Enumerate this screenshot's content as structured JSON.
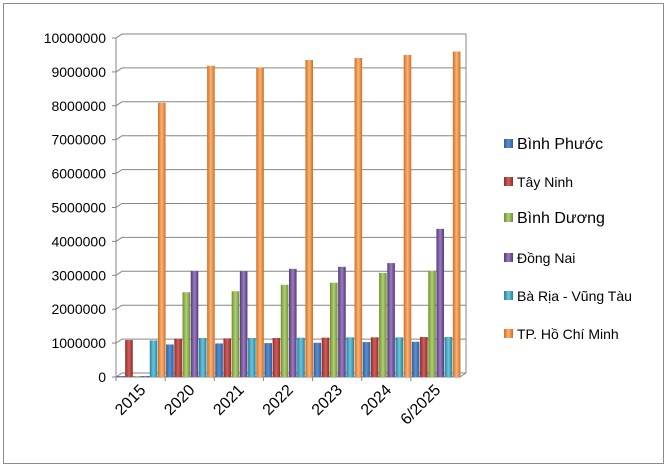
{
  "chart_data": {
    "type": "bar",
    "title": "",
    "xlabel": "",
    "ylabel": "",
    "categories": [
      "2015",
      "2020",
      "2021",
      "2022",
      "2023",
      "2024",
      "6/2025"
    ],
    "ylim": [
      0,
      10000000
    ],
    "yticks": [
      0,
      1000000,
      2000000,
      3000000,
      4000000,
      5000000,
      6000000,
      7000000,
      8000000,
      9000000,
      10000000
    ],
    "ytick_labels": [
      "0",
      "1000000",
      "2000000",
      "3000000",
      "4000000",
      "5000000",
      "6000000",
      "7000000",
      "8000000",
      "9000000",
      "10000000"
    ],
    "grid": true,
    "legend_position": "right",
    "series": [
      {
        "name": "Bình Phước",
        "color": "#4a7ebb",
        "values": [
          30000,
          960000,
          990000,
          1000000,
          1010000,
          1030000,
          1040000
        ]
      },
      {
        "name": "Tây Ninh",
        "color": "#be4b48",
        "values": [
          1090000,
          1130000,
          1140000,
          1150000,
          1160000,
          1170000,
          1180000
        ]
      },
      {
        "name": "Bình Dương",
        "color": "#98b954",
        "values": [
          30000,
          2500000,
          2530000,
          2720000,
          2780000,
          3070000,
          3130000
        ]
      },
      {
        "name": "Đồng Nai",
        "color": "#7d60a0",
        "values": [
          30000,
          3130000,
          3120000,
          3190000,
          3250000,
          3360000,
          4370000
        ]
      },
      {
        "name": "Bà Rịa - Vũng Tàu",
        "color": "#46aac4",
        "values": [
          1080000,
          1150000,
          1150000,
          1160000,
          1170000,
          1170000,
          1180000
        ]
      },
      {
        "name": "TP. Hồ Chí Minh",
        "color": "#f79646",
        "values": [
          8090000,
          9180000,
          9130000,
          9350000,
          9410000,
          9500000,
          9600000
        ]
      }
    ]
  }
}
